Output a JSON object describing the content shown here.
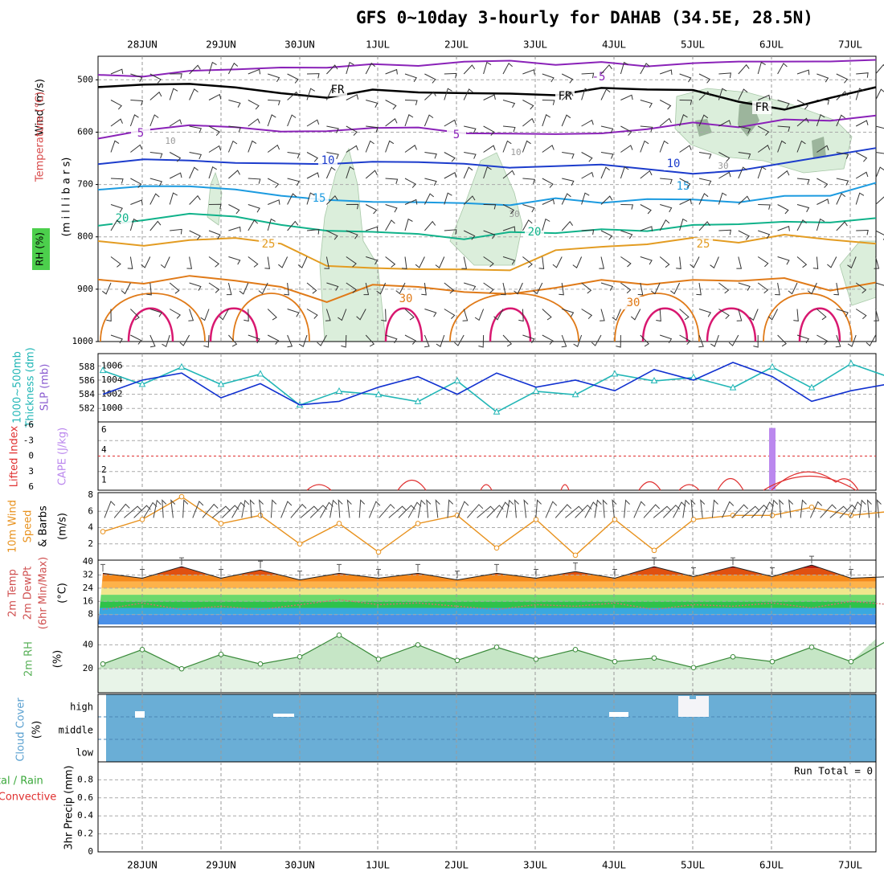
{
  "title": "GFS 0~10day 3-hourly for DAHAB (34.5E, 28.5N)",
  "colors": {
    "rh_fill": "#dbeedb",
    "rh_dark": "#9cb59c",
    "temp_minus5": "#8a22b8",
    "temp_fr": "#000000",
    "temp_10": "#1c3ccc",
    "temp_15": "#1c9be0",
    "temp_20": "#10b28a",
    "temp_25": "#e39c22",
    "temp_30": "#e07a18",
    "temp_35": "#d81870",
    "slp": "#1030d0",
    "thickness": "#22b6b6",
    "lifted_index": "#e03030",
    "cape": "#bb88ee",
    "wind": "#e8921e",
    "cloud": "#6aaed6",
    "rh2m": "#58b058"
  },
  "date_labels": [
    "28JUN",
    "29JUN",
    "30JUN",
    "1JUL",
    "2JUL",
    "3JUL",
    "4JUL",
    "5JUL",
    "6JUL",
    "7JUL"
  ],
  "panels": {
    "upper": {
      "ylabel": "(m i l l i b a r s)",
      "side_labels": [
        "Wind (m/s)",
        "Temperature (°C)",
        "RH (%)"
      ],
      "ticks": [
        "500",
        "600",
        "700",
        "800",
        "900",
        "1000"
      ],
      "contour_labels": [
        "-5",
        "FR",
        "5",
        "10",
        "15",
        "20",
        "25",
        "30"
      ],
      "rh_labels": [
        "10",
        "30"
      ]
    },
    "slp": {
      "ylabel_left": [
        "1000~500mb",
        "Thickness (dm)"
      ],
      "ylabel_right": "SLP (mb)",
      "ticks_left": [
        "582",
        "584",
        "586",
        "588"
      ],
      "ticks_right": [
        "1000",
        "1002",
        "1004",
        "1006"
      ]
    },
    "cape": {
      "ylabel_left": "Lifted Index",
      "ylabel_right": "CAPE (J/kg)",
      "ticks_left": [
        "-6",
        "-3",
        "0",
        "3",
        "6"
      ],
      "ticks_right": [
        "1",
        "2",
        "4",
        "6"
      ]
    },
    "wind": {
      "ylabel": [
        "10m Wind",
        "Speed",
        "& Barbs"
      ],
      "unit": "(m/s)",
      "ticks": [
        "2",
        "4",
        "6",
        "8"
      ]
    },
    "temp": {
      "ylabel": [
        "2m Temp",
        "2m DewPt",
        "(6hr Min/Max)"
      ],
      "unit": "(°C)",
      "ticks": [
        "8",
        "16",
        "24",
        "32",
        "40"
      ]
    },
    "rh2m": {
      "ylabel": "2m RH",
      "unit": "(%)",
      "ticks": [
        "20",
        "40"
      ]
    },
    "cloud": {
      "ylabel": "Cloud Cover",
      "unit": "(%)",
      "levels": [
        "high",
        "middle",
        "low"
      ]
    },
    "precip": {
      "ylabel_left": [
        "Total / Rain",
        "Convective"
      ],
      "ylabel_right": "3hr Precip (mm)",
      "ticks": [
        "0",
        "0.2",
        "0.4",
        "0.6",
        "0.8"
      ],
      "run_total": "Run Total = 0"
    }
  },
  "chart_data": [
    {
      "type": "line",
      "panel": "upper-air contours (isotherms, °C)",
      "x_range": [
        "27JUN 12Z",
        "7JUL 06Z"
      ],
      "ylim": [
        1000,
        450
      ],
      "series": [
        {
          "name": "-5",
          "pressure_mb": [
            610,
            600,
            590,
            595,
            600,
            598,
            595,
            590,
            600,
            605,
            600,
            598,
            590,
            585,
            590,
            580,
            575,
            570
          ]
        },
        {
          "name": "0",
          "pressure_mb": [
            515,
            510,
            505,
            510,
            525,
            530,
            520,
            520,
            525,
            530,
            525,
            520,
            515,
            520,
            540,
            560,
            530,
            518
          ]
        },
        {
          "name": "5",
          "pressure_mb": [
            495,
            490,
            485,
            480,
            480,
            475,
            470,
            470,
            470,
            468,
            468,
            465,
            470,
            470,
            468,
            465,
            462,
            460
          ]
        },
        {
          "name": "10",
          "pressure_mb": [
            660,
            655,
            650,
            655,
            660,
            665,
            655,
            660,
            665,
            670,
            665,
            660,
            670,
            680,
            675,
            660,
            645,
            630
          ]
        },
        {
          "name": "15",
          "pressure_mb": [
            710,
            705,
            700,
            705,
            720,
            725,
            730,
            735,
            740,
            735,
            730,
            735,
            730,
            725,
            730,
            725,
            720,
            700
          ]
        },
        {
          "name": "20",
          "pressure_mb": [
            775,
            765,
            760,
            765,
            780,
            790,
            795,
            790,
            800,
            795,
            790,
            790,
            785,
            780,
            775,
            775,
            770,
            760
          ]
        },
        {
          "name": "25",
          "pressure_mb": [
            805,
            815,
            810,
            800,
            810,
            860,
            855,
            860,
            865,
            860,
            830,
            820,
            810,
            805,
            810,
            800,
            810,
            815
          ]
        },
        {
          "name": "30",
          "pressure_mb": [
            880,
            885,
            870,
            880,
            900,
            920,
            895,
            900,
            910,
            905,
            900,
            880,
            890,
            885,
            880,
            880,
            900,
            885
          ]
        }
      ]
    },
    {
      "type": "line",
      "panel": "SLP and thickness",
      "x_labels": [
        "27JUN 12Z",
        "28JUN 00Z",
        "28JUN 12Z",
        "29JUN 00Z",
        "29JUN 12Z",
        "30JUN 00Z",
        "30JUN 12Z",
        "1JUL 00Z",
        "1JUL 12Z",
        "2JUL 00Z",
        "2JUL 12Z",
        "3JUL 00Z",
        "3JUL 12Z",
        "4JUL 00Z",
        "4JUL 12Z",
        "5JUL 00Z",
        "5JUL 12Z",
        "6JUL 00Z",
        "6JUL 12Z",
        "7JUL 00Z",
        "7JUL 06Z"
      ],
      "series": [
        {
          "name": "SLP (mb)",
          "values": [
            1002.0,
            1004.0,
            1005.0,
            1001.5,
            1003.5,
            1000.5,
            1001.0,
            1003.0,
            1004.5,
            1002.0,
            1005.0,
            1003.0,
            1004.0,
            1002.5,
            1005.5,
            1004.0,
            1006.5,
            1004.5,
            1001.0,
            1002.5,
            1003.5
          ]
        },
        {
          "name": "Thickness (dm)",
          "values": [
            587.5,
            585.5,
            588.0,
            585.5,
            587.0,
            582.5,
            584.5,
            584.0,
            583.0,
            586.0,
            581.5,
            584.5,
            584.0,
            587.0,
            586.0,
            586.5,
            585.0,
            588.0,
            585.0,
            588.5,
            586.5
          ]
        }
      ]
    },
    {
      "type": "bar",
      "panel": "CAPE / Lifted Index",
      "bars": [
        {
          "name": "CAPE (J/kg)",
          "x": "6JUL 00Z",
          "value": 6.2
        }
      ],
      "series": [
        {
          "name": "Lifted Index",
          "segments": [
            {
              "x": [
                "30JUN 06Z",
                "30JUN 18Z"
              ],
              "peak": 5.6
            },
            {
              "x": [
                "1JUL 06Z",
                "1JUL 18Z"
              ],
              "peak": 4.2
            },
            {
              "x": [
                "2JUL 09Z",
                "2JUL 12Z"
              ],
              "peak": 5.8
            },
            {
              "x": [
                "3JUL 09Z",
                "3JUL 12Z"
              ],
              "peak": 5.8
            },
            {
              "x": [
                "4JUL 06Z",
                "4JUL 18Z"
              ],
              "peak": 4.5
            },
            {
              "x": [
                "5JUL 00Z",
                "6JUL 00Z"
              ],
              "peak": 4.3
            },
            {
              "x": [
                "6JUL 00Z",
                "7JUL 06Z"
              ],
              "peak": 3.2
            }
          ]
        }
      ],
      "ref_line": 0
    },
    {
      "type": "line",
      "panel": "10m Wind",
      "x_labels": [
        "27JUN 12Z",
        "28JUN 00Z",
        "28JUN 12Z",
        "29JUN 00Z",
        "29JUN 12Z",
        "30JUN 00Z",
        "30JUN 12Z",
        "1JUL 00Z",
        "1JUL 12Z",
        "2JUL 00Z",
        "2JUL 12Z",
        "3JUL 00Z",
        "3JUL 12Z",
        "4JUL 00Z",
        "4JUL 12Z",
        "5JUL 00Z",
        "5JUL 12Z",
        "6JUL 00Z",
        "6JUL 12Z",
        "7JUL 00Z",
        "7JUL 06Z"
      ],
      "series": [
        {
          "name": "Speed (m/s)",
          "values": [
            3.5,
            5.0,
            7.8,
            4.5,
            5.5,
            2.0,
            4.5,
            1.0,
            4.5,
            5.5,
            1.5,
            5.0,
            0.6,
            5.0,
            1.2,
            5.0,
            5.5,
            5.5,
            6.5,
            5.5,
            6.0
          ]
        }
      ]
    },
    {
      "type": "area",
      "panel": "2m Temp / DewPt",
      "x_labels": [
        "27JUN 12Z",
        "28JUN 00Z",
        "28JUN 12Z",
        "29JUN 00Z",
        "29JUN 12Z",
        "30JUN 00Z",
        "30JUN 12Z",
        "1JUL 00Z",
        "1JUL 12Z",
        "2JUL 00Z",
        "2JUL 12Z",
        "3JUL 00Z",
        "3JUL 12Z",
        "4JUL 00Z",
        "4JUL 12Z",
        "5JUL 00Z",
        "5JUL 12Z",
        "6JUL 00Z",
        "6JUL 12Z",
        "7JUL 00Z",
        "7JUL 06Z"
      ],
      "series": [
        {
          "name": "2m Temp (°C)",
          "values": [
            33,
            30,
            37,
            30,
            35,
            29,
            33,
            30,
            33,
            29,
            33,
            30,
            34,
            30,
            37,
            31,
            37,
            31,
            38,
            30,
            31
          ]
        },
        {
          "name": "2m DewPt (°C)",
          "values": [
            11,
            15,
            11,
            13,
            11,
            14,
            17,
            14,
            15,
            13,
            11,
            14,
            13,
            15,
            11,
            14,
            13,
            15,
            12,
            16,
            14
          ]
        }
      ]
    },
    {
      "type": "area",
      "panel": "2m RH",
      "x_labels": [
        "27JUN 12Z",
        "28JUN 00Z",
        "28JUN 12Z",
        "29JUN 00Z",
        "29JUN 12Z",
        "30JUN 00Z",
        "30JUN 12Z",
        "1JUL 00Z",
        "1JUL 12Z",
        "2JUL 00Z",
        "2JUL 12Z",
        "3JUL 00Z",
        "3JUL 12Z",
        "4JUL 00Z",
        "4JUL 12Z",
        "5JUL 00Z",
        "5JUL 12Z",
        "6JUL 00Z",
        "6JUL 12Z",
        "7JUL 00Z",
        "7JUL 06Z"
      ],
      "series": [
        {
          "name": "2m RH (%)",
          "values": [
            24,
            36,
            20,
            32,
            24,
            30,
            48,
            28,
            40,
            27,
            38,
            28,
            36,
            26,
            29,
            21,
            30,
            26,
            38,
            26,
            45
          ]
        }
      ]
    },
    {
      "type": "heatmap",
      "panel": "Cloud Cover",
      "levels": [
        "high",
        "middle",
        "low"
      ],
      "value": "near 100% at all levels",
      "gaps": [
        {
          "x": "28JUN 00Z",
          "level": "high"
        },
        {
          "x": "29JUN 18Z",
          "level": "high"
        },
        {
          "x": "3JUL 21Z",
          "level": "high"
        },
        {
          "x": "4JUL 21Z - 5JUL 03Z",
          "level": "high"
        }
      ]
    },
    {
      "type": "bar",
      "panel": "3hr Precip",
      "values": [],
      "ylim": [
        0,
        1.0
      ],
      "run_total": 0
    }
  ]
}
